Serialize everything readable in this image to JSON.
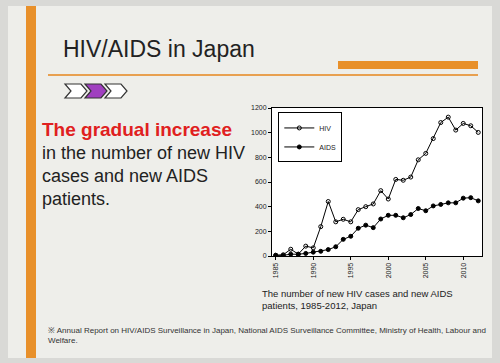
{
  "slide": {
    "heading": "HIV/AIDS in Japan",
    "highlight": "The gradual increase",
    "text": "in the number of new HIV cases and new AIDS patients.",
    "footnote": "※ Annual Report on HIV/AIDS Surveillance in Japan, National AIDS Surveillance Committee, Ministry of Health, Labour and Welfare."
  },
  "chart_data": {
    "type": "line",
    "title": "The number of new HIV cases and new AIDS patients, 1985-2012, Japan",
    "x": [
      1985,
      1986,
      1987,
      1988,
      1989,
      1990,
      1991,
      1992,
      1993,
      1994,
      1995,
      1996,
      1997,
      1998,
      1999,
      2000,
      2001,
      2002,
      2003,
      2004,
      2005,
      2006,
      2007,
      2008,
      2009,
      2010,
      2011,
      2012
    ],
    "series": [
      {
        "name": "HIV",
        "color": "#000000",
        "marker": "open_circle",
        "values": [
          6,
          10,
          55,
          15,
          80,
          66,
          238,
          442,
          277,
          298,
          277,
          376,
          400,
          422,
          530,
          462,
          621,
          614,
          640,
          780,
          832,
          952,
          1082,
          1126,
          1021,
          1075,
          1056,
          1002
        ]
      },
      {
        "name": "AIDS",
        "color": "#000000",
        "marker": "filled_circle",
        "values": [
          6,
          5,
          15,
          14,
          21,
          31,
          38,
          52,
          75,
          135,
          160,
          225,
          250,
          230,
          300,
          330,
          330,
          310,
          336,
          385,
          367,
          406,
          418,
          431,
          431,
          469,
          473,
          447
        ]
      }
    ],
    "xlim": [
      1984.5,
      2012.5
    ],
    "xticks": [
      1985,
      1990,
      1995,
      2000,
      2005,
      2010
    ],
    "ylim": [
      0,
      1200
    ],
    "yticks": [
      0,
      200,
      400,
      600,
      800,
      1000,
      1200
    ],
    "grid": false,
    "legend": "upper left"
  }
}
